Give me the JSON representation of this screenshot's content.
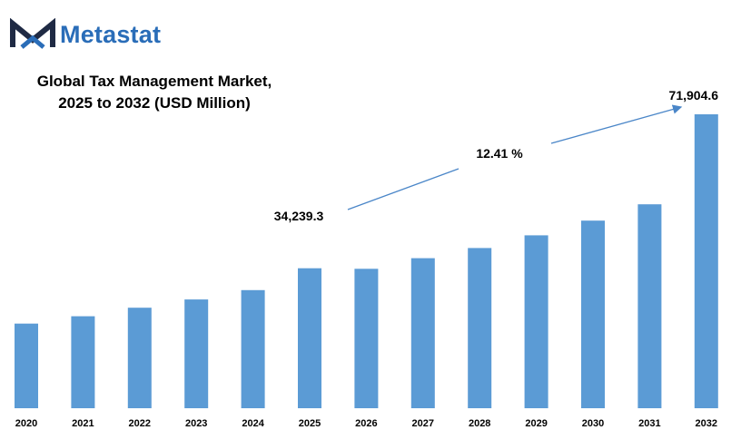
{
  "brand": {
    "name": "Metastat",
    "color": "#2a6db8",
    "mark_dark": "#1f2a44",
    "mark_accent": "#2a6db8"
  },
  "chart_data": {
    "type": "bar",
    "title_line1": "Global Tax Management Market,",
    "title_line2": "2025 to 2032 (USD Million)",
    "categories": [
      "2020",
      "2021",
      "2022",
      "2023",
      "2024",
      "2025",
      "2026",
      "2027",
      "2028",
      "2029",
      "2030",
      "2031",
      "2032"
    ],
    "values": [
      20700,
      22500,
      24600,
      26600,
      28900,
      34239.3,
      34100,
      36700,
      39200,
      42300,
      45900,
      49900,
      71904.6
    ],
    "data_labels": [
      {
        "category": "2025",
        "text": "34,239.3"
      },
      {
        "category": "2032",
        "text": "71,904.6"
      }
    ],
    "cagr_label": "12.41 %",
    "bar_color": "#5b9bd5",
    "arrow_color": "#4a86c8",
    "grid": false,
    "legend": "none"
  }
}
